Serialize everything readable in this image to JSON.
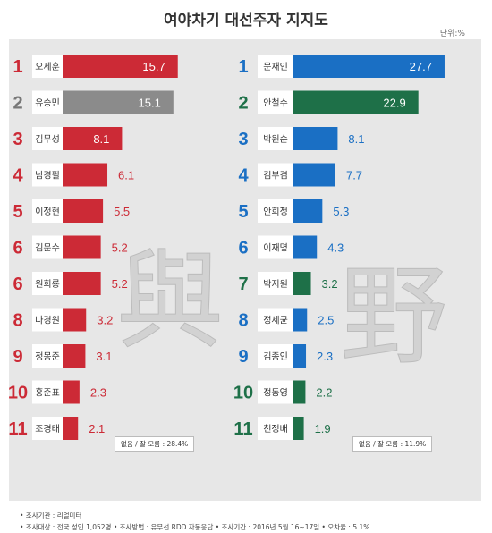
{
  "chart_data": [
    {
      "type": "bar",
      "group": "여",
      "categories": [
        "오세훈",
        "유승민",
        "김무성",
        "남경필",
        "이정현",
        "김문수",
        "원희룡",
        "나경원",
        "정몽준",
        "홍준표",
        "조경태"
      ],
      "ranks": [
        "1",
        "2",
        "3",
        "4",
        "5",
        "6",
        "6",
        "8",
        "9",
        "10",
        "11"
      ],
      "values": [
        15.7,
        15.1,
        8.1,
        6.1,
        5.5,
        5.2,
        5.2,
        3.2,
        3.1,
        2.3,
        2.1
      ],
      "colors": [
        "#cc2a36",
        "#8b8b8b",
        "#cc2a36",
        "#cc2a36",
        "#cc2a36",
        "#cc2a36",
        "#cc2a36",
        "#cc2a36",
        "#cc2a36",
        "#cc2a36",
        "#cc2a36"
      ],
      "rank_colors": [
        "#cc2a36",
        "#777777",
        "#cc2a36",
        "#cc2a36",
        "#cc2a36",
        "#cc2a36",
        "#cc2a36",
        "#cc2a36",
        "#cc2a36",
        "#cc2a36",
        "#cc2a36"
      ],
      "note": "없음 / 잘 모름 : 28.4%"
    },
    {
      "type": "bar",
      "group": "야",
      "categories": [
        "문재인",
        "안철수",
        "박원순",
        "김부겸",
        "안희정",
        "이재명",
        "박지원",
        "정세균",
        "김종인",
        "정동영",
        "천정배"
      ],
      "ranks": [
        "1",
        "2",
        "3",
        "4",
        "5",
        "6",
        "7",
        "8",
        "9",
        "10",
        "11"
      ],
      "values": [
        27.7,
        22.9,
        8.1,
        7.7,
        5.3,
        4.3,
        3.2,
        2.5,
        2.3,
        2.2,
        1.9
      ],
      "colors": [
        "#1a6fc4",
        "#1e7048",
        "#1a6fc4",
        "#1a6fc4",
        "#1a6fc4",
        "#1a6fc4",
        "#1e7048",
        "#1a6fc4",
        "#1a6fc4",
        "#1e7048",
        "#1e7048"
      ],
      "rank_colors": [
        "#1a6fc4",
        "#1e7048",
        "#1a6fc4",
        "#1a6fc4",
        "#1a6fc4",
        "#1a6fc4",
        "#1e7048",
        "#1a6fc4",
        "#1a6fc4",
        "#1e7048",
        "#1e7048"
      ],
      "note": "없음 / 잘 모름 : 11.9%"
    }
  ],
  "header": {
    "title": "여야차기 대선주자 지지도",
    "unit": "단위:%"
  },
  "watermark": {
    "left": "與",
    "right": "野"
  },
  "footer": {
    "line1": "• 조사기관 : 리얼미터",
    "line2": "• 조사대상 : 전국 성인 1,052명   • 조사방법 : 유무선 RDD 자동응답   • 조사기간 : 2016년 5월 16~17일   • 오차율 : 5.1%"
  }
}
